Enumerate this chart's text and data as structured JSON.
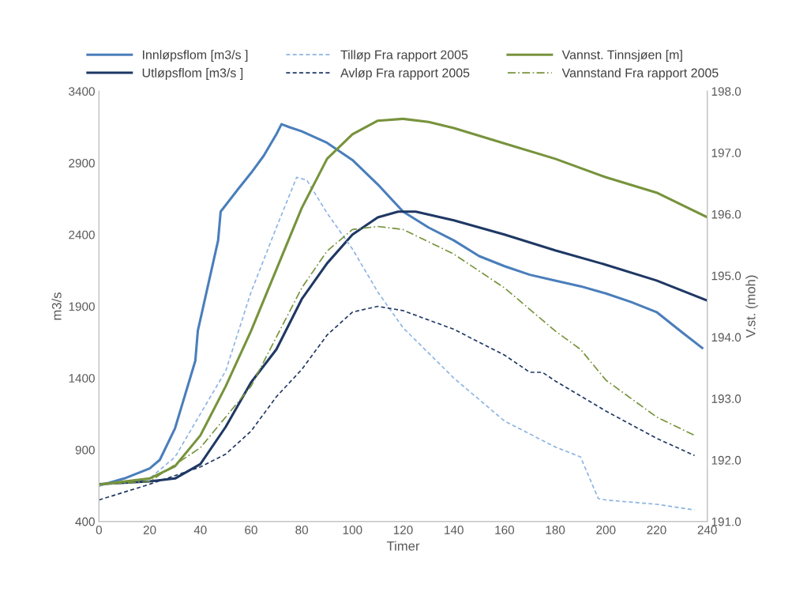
{
  "chart_data": {
    "type": "line",
    "xlabel": "Timer",
    "ylabel": "m3/s",
    "y2label": "V.st. (moh)",
    "legend": "top",
    "grid": false,
    "marker": "none",
    "xlim": [
      0,
      240
    ],
    "xticks": [
      0,
      20,
      40,
      60,
      80,
      100,
      120,
      140,
      160,
      180,
      200,
      220,
      240
    ],
    "ylim": [
      400,
      3400
    ],
    "yticks": [
      400,
      900,
      1400,
      1900,
      2400,
      2900,
      3400
    ],
    "y2lim": [
      191,
      198
    ],
    "y2ticks": [
      {
        "value": 191,
        "label": "191.0"
      },
      {
        "value": 192,
        "label": "192.0"
      },
      {
        "value": 193,
        "label": "193.0"
      },
      {
        "value": 194,
        "label": "194.0"
      },
      {
        "value": 195,
        "label": "195.0"
      },
      {
        "value": 196,
        "label": "196.0"
      },
      {
        "value": 197,
        "label": "197.0"
      },
      {
        "value": 198,
        "label": "198.0"
      }
    ],
    "series": [
      {
        "name": "Innløpsflom [m3/s ]",
        "color": "#4a7ebb",
        "line_style": "solid",
        "x": [
          0,
          10,
          20,
          24,
          30,
          38,
          39,
          47,
          48,
          55,
          60,
          65,
          70,
          72,
          75,
          80,
          90,
          100,
          110,
          120,
          130,
          140,
          150,
          160,
          170,
          180,
          190,
          200,
          210,
          220,
          230,
          238
        ],
        "values": [
          650,
          700,
          770,
          830,
          1050,
          1520,
          1730,
          2360,
          2560,
          2720,
          2830,
          2950,
          3100,
          3170,
          3150,
          3120,
          3040,
          2920,
          2750,
          2560,
          2450,
          2360,
          2250,
          2180,
          2120,
          2080,
          2040,
          1990,
          1930,
          1860,
          1720,
          1610
        ]
      },
      {
        "name": "Utløpsflom [m3/s ]",
        "color": "#1f3864",
        "line_style": "solid",
        "x": [
          0,
          20,
          30,
          40,
          50,
          60,
          70,
          80,
          90,
          100,
          110,
          118,
          125,
          140,
          160,
          180,
          200,
          220,
          240
        ],
        "values": [
          660,
          680,
          700,
          800,
          1060,
          1370,
          1600,
          1950,
          2200,
          2400,
          2520,
          2560,
          2560,
          2500,
          2400,
          2290,
          2190,
          2080,
          1940
        ]
      },
      {
        "name": "Tilløp Fra rapport 2005",
        "color": "#8db4e2",
        "line_style": "dashed",
        "x": [
          0,
          20,
          30,
          40,
          50,
          60,
          70,
          78,
          82,
          90,
          100,
          110,
          120,
          140,
          160,
          180,
          190,
          197,
          200,
          220,
          235
        ],
        "values": [
          650,
          700,
          850,
          1150,
          1450,
          2000,
          2450,
          2800,
          2780,
          2550,
          2300,
          2000,
          1750,
          1400,
          1100,
          920,
          850,
          560,
          550,
          520,
          480
        ]
      },
      {
        "name": "Avløp Fra rapport 2005",
        "color": "#1f3864",
        "line_style": "dashed",
        "x": [
          0,
          20,
          40,
          50,
          60,
          70,
          80,
          90,
          100,
          110,
          120,
          140,
          160,
          170,
          175,
          180,
          200,
          220,
          235
        ],
        "values": [
          550,
          660,
          780,
          870,
          1030,
          1270,
          1460,
          1700,
          1860,
          1900,
          1870,
          1740,
          1560,
          1440,
          1440,
          1380,
          1170,
          980,
          860
        ]
      },
      {
        "name": "Vannst. Tinnsjøen [m]",
        "color": "#77933c",
        "line_style": "solid",
        "axis": "y2",
        "x": [
          0,
          20,
          30,
          40,
          50,
          60,
          70,
          80,
          90,
          100,
          110,
          120,
          130,
          140,
          160,
          180,
          200,
          220,
          240
        ],
        "values": [
          191.6,
          191.7,
          191.9,
          192.4,
          193.2,
          194.1,
          195.1,
          196.1,
          196.9,
          197.3,
          197.52,
          197.55,
          197.5,
          197.4,
          197.15,
          196.9,
          196.6,
          196.35,
          195.95
        ]
      },
      {
        "name": "Vannstand Fra rapport 2005",
        "color": "#77933c",
        "line_style": "dashdot",
        "axis": "y2",
        "x": [
          0,
          20,
          40,
          60,
          70,
          80,
          90,
          100,
          110,
          120,
          140,
          160,
          180,
          190,
          200,
          220,
          235
        ],
        "values": [
          191.6,
          191.65,
          192.2,
          193.2,
          194.0,
          194.8,
          195.4,
          195.75,
          195.8,
          195.75,
          195.35,
          194.8,
          194.1,
          193.8,
          193.3,
          192.7,
          192.4
        ]
      }
    ]
  }
}
